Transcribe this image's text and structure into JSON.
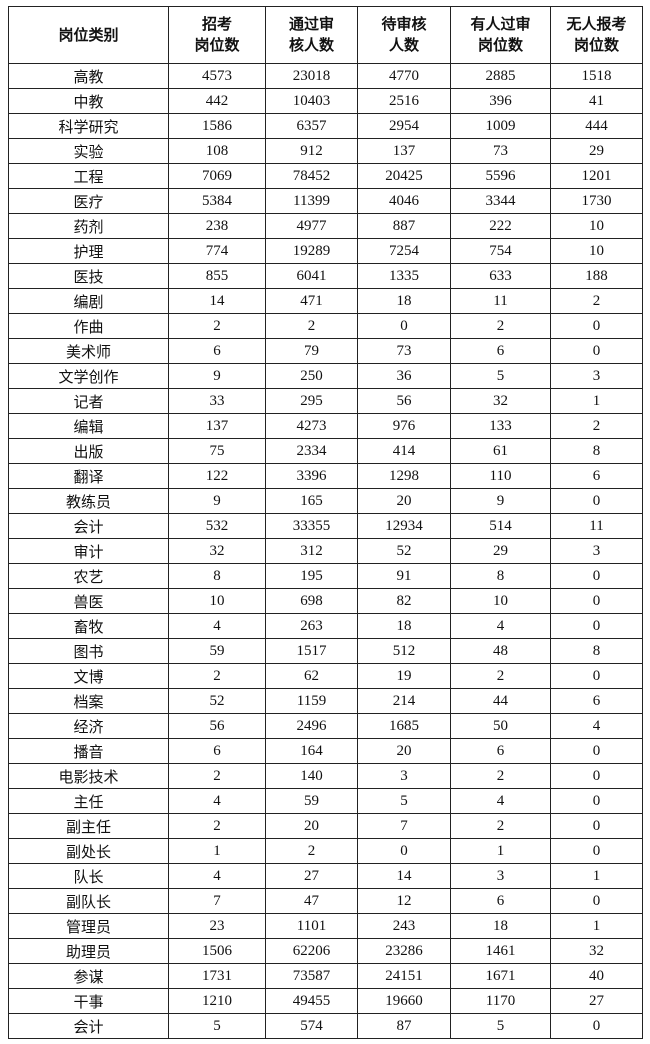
{
  "table": {
    "header": [
      "岗位类别",
      "招考\n岗位数",
      "通过审\n核人数",
      "待审核\n人数",
      "有人过审\n岗位数",
      "无人报考\n岗位数"
    ],
    "rows": [
      [
        "高教",
        4573,
        23018,
        4770,
        2885,
        1518
      ],
      [
        "中教",
        442,
        10403,
        2516,
        396,
        41
      ],
      [
        "科学研究",
        1586,
        6357,
        2954,
        1009,
        444
      ],
      [
        "实验",
        108,
        912,
        137,
        73,
        29
      ],
      [
        "工程",
        7069,
        78452,
        20425,
        5596,
        1201
      ],
      [
        "医疗",
        5384,
        11399,
        4046,
        3344,
        1730
      ],
      [
        "药剂",
        238,
        4977,
        887,
        222,
        10
      ],
      [
        "护理",
        774,
        19289,
        7254,
        754,
        10
      ],
      [
        "医技",
        855,
        6041,
        1335,
        633,
        188
      ],
      [
        "编剧",
        14,
        471,
        18,
        11,
        2
      ],
      [
        "作曲",
        2,
        2,
        0,
        2,
        0
      ],
      [
        "美术师",
        6,
        79,
        73,
        6,
        0
      ],
      [
        "文学创作",
        9,
        250,
        36,
        5,
        3
      ],
      [
        "记者",
        33,
        295,
        56,
        32,
        1
      ],
      [
        "编辑",
        137,
        4273,
        976,
        133,
        2
      ],
      [
        "出版",
        75,
        2334,
        414,
        61,
        8
      ],
      [
        "翻译",
        122,
        3396,
        1298,
        110,
        6
      ],
      [
        "教练员",
        9,
        165,
        20,
        9,
        0
      ],
      [
        "会计",
        532,
        33355,
        12934,
        514,
        11
      ],
      [
        "审计",
        32,
        312,
        52,
        29,
        3
      ],
      [
        "农艺",
        8,
        195,
        91,
        8,
        0
      ],
      [
        "兽医",
        10,
        698,
        82,
        10,
        0
      ],
      [
        "畜牧",
        4,
        263,
        18,
        4,
        0
      ],
      [
        "图书",
        59,
        1517,
        512,
        48,
        8
      ],
      [
        "文博",
        2,
        62,
        19,
        2,
        0
      ],
      [
        "档案",
        52,
        1159,
        214,
        44,
        6
      ],
      [
        "经济",
        56,
        2496,
        1685,
        50,
        4
      ],
      [
        "播音",
        6,
        164,
        20,
        6,
        0
      ],
      [
        "电影技术",
        2,
        140,
        3,
        2,
        0
      ],
      [
        "主任",
        4,
        59,
        5,
        4,
        0
      ],
      [
        "副主任",
        2,
        20,
        7,
        2,
        0
      ],
      [
        "副处长",
        1,
        2,
        0,
        1,
        0
      ],
      [
        "队长",
        4,
        27,
        14,
        3,
        1
      ],
      [
        "副队长",
        7,
        47,
        12,
        6,
        0
      ],
      [
        "管理员",
        23,
        1101,
        243,
        18,
        1
      ],
      [
        "助理员",
        1506,
        62206,
        23286,
        1461,
        32
      ],
      [
        "参谋",
        1731,
        73587,
        24151,
        1671,
        40
      ],
      [
        "干事",
        1210,
        49455,
        19660,
        1170,
        27
      ],
      [
        "会计",
        5,
        574,
        87,
        5,
        0
      ]
    ]
  }
}
